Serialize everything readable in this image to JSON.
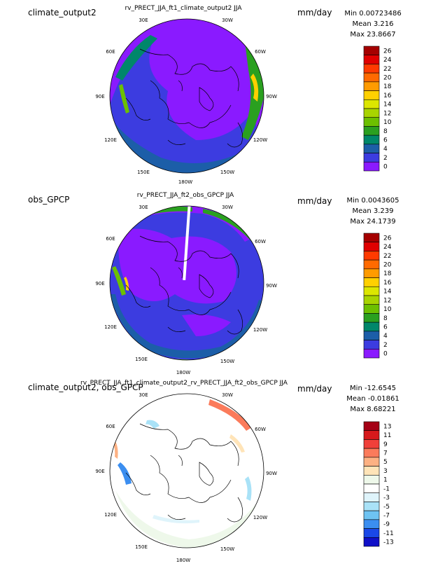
{
  "panels": [
    {
      "left_title": "climate_output2",
      "center_title": "rv_PRECT_JJA_ft1_climate_output2  JJA",
      "units": "mm/day",
      "stats": [
        "Min 0.00723486",
        "Mean 3.216",
        "Max 23.8667"
      ],
      "colorbar_labels": [
        "26",
        "24",
        "22",
        "20",
        "18",
        "16",
        "14",
        "12",
        "10",
        "8",
        "6",
        "4",
        "2",
        "0"
      ],
      "colorbar_colors": [
        "#a50000",
        "#e00000",
        "#ff3a00",
        "#ff6a00",
        "#ff9b00",
        "#ffd000",
        "#dce600",
        "#a8d400",
        "#6cc000",
        "#2aa020",
        "#00876a",
        "#1c5ea8",
        "#3c3ce0",
        "#8a1aff"
      ],
      "lon_labels": [
        "30E",
        "30W",
        "60E",
        "60W",
        "90E",
        "90W",
        "120E",
        "120W",
        "150E",
        "150W",
        "180W"
      ]
    },
    {
      "left_title": "obs_GPCP",
      "center_title": "rv_PRECT_JJA_ft2_obs_GPCP  JJA",
      "units": "mm/day",
      "stats": [
        "Min 0.0043605",
        "Mean 3.239",
        "Max 24.1739"
      ],
      "colorbar_labels": [
        "26",
        "24",
        "22",
        "20",
        "18",
        "16",
        "14",
        "12",
        "10",
        "8",
        "6",
        "4",
        "2",
        "0"
      ],
      "colorbar_colors": [
        "#a50000",
        "#e00000",
        "#ff3a00",
        "#ff6a00",
        "#ff9b00",
        "#ffd000",
        "#dce600",
        "#a8d400",
        "#6cc000",
        "#2aa020",
        "#00876a",
        "#1c5ea8",
        "#3c3ce0",
        "#8a1aff"
      ],
      "lon_labels": [
        "30E",
        "30W",
        "60E",
        "60W",
        "90E",
        "90W",
        "120E",
        "120W",
        "150E",
        "150W",
        "180W"
      ]
    },
    {
      "left_title": "climate_output2, obs_GPCP",
      "center_title": "rv_PRECT_JJA_ft1_climate_output2_rv_PRECT_JJA_ft2_obs_GPCP  JJA",
      "units": "mm/day",
      "stats": [
        "Min -12.6545",
        "Mean -0.01861",
        "Max 8.68221"
      ],
      "colorbar_labels": [
        "13",
        "11",
        "9",
        "7",
        "5",
        "3",
        "1",
        "-1",
        "-3",
        "-5",
        "-7",
        "-9",
        "-11",
        "-13"
      ],
      "colorbar_colors": [
        "#a50015",
        "#d7191c",
        "#f0403a",
        "#fb7b5b",
        "#fdb183",
        "#ffe4b8",
        "#eef8ea",
        "#ffffff",
        "#dff4fb",
        "#a9e2f7",
        "#6ec3f2",
        "#3b8ef0",
        "#1a48e8",
        "#1010c8"
      ],
      "lon_labels": [
        "30E",
        "30W",
        "60E",
        "60W",
        "90E",
        "90W",
        "120E",
        "120W",
        "150E",
        "150W",
        "180W"
      ]
    }
  ]
}
